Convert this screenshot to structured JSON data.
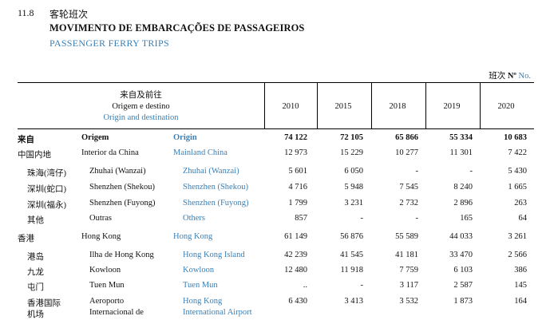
{
  "header": {
    "section_number": "11.8",
    "title_zh": "客轮班次",
    "title_pt": "MOVIMENTO DE EMBARCAÇÕES DE PASSAGEIROS",
    "title_en": "PASSENGER FERRY TRIPS"
  },
  "unit": {
    "zh": "班次",
    "pt": "Nº",
    "en": "No."
  },
  "table": {
    "col_header": {
      "zh": "来自及前往",
      "pt": "Origem e destino",
      "en": "Origin and destination"
    },
    "years": [
      "2010",
      "2015",
      "2018",
      "2019",
      "2020"
    ],
    "rows": [
      {
        "zh": "来自",
        "pt": "Origem",
        "en": "Origin",
        "values": [
          "74 122",
          "72 105",
          "65 866",
          "55 334",
          "10 683"
        ]
      },
      {
        "zh": "中国内地",
        "pt": "Interior da China",
        "en": "Mainland China",
        "values": [
          "12 973",
          "15 229",
          "10 277",
          "11 301",
          "7 422"
        ]
      },
      {
        "zh": "珠海(湾仔)",
        "pt": "Zhuhai (Wanzai)",
        "en": "Zhuhai (Wanzai)",
        "values": [
          "5 601",
          "6 050",
          "-",
          "-",
          "5 430"
        ]
      },
      {
        "zh": "深圳(蛇口)",
        "pt": "Shenzhen (Shekou)",
        "en": "Shenzhen (Shekou)",
        "values": [
          "4 716",
          "5 948",
          "7 545",
          "8 240",
          "1 665"
        ]
      },
      {
        "zh": "深圳(福永)",
        "pt": "Shenzhen (Fuyong)",
        "en": "Shenzhen (Fuyong)",
        "values": [
          "1 799",
          "3 231",
          "2 732",
          "2 896",
          "263"
        ]
      },
      {
        "zh": "其他",
        "pt": "Outras",
        "en": "Others",
        "values": [
          "857",
          "-",
          "-",
          "165",
          "64"
        ]
      },
      {
        "zh": "香港",
        "pt": "Hong Kong",
        "en": "Hong Kong",
        "values": [
          "61 149",
          "56 876",
          "55 589",
          "44 033",
          "3 261"
        ]
      },
      {
        "zh": "港岛",
        "pt": "Ilha de Hong Kong",
        "en": "Hong Kong Island",
        "values": [
          "42 239",
          "41 545",
          "41 181",
          "33 470",
          "2 566"
        ]
      },
      {
        "zh": "九龙",
        "pt": "Kowloon",
        "en": "Kowloon",
        "values": [
          "12 480",
          "11 918",
          "7 759",
          "6 103",
          "386"
        ]
      },
      {
        "zh": "屯门",
        "pt": "Tuen Mun",
        "en": "Tuen Mun",
        "values": [
          "..",
          "-",
          "3 117",
          "2 587",
          "145"
        ]
      },
      {
        "zh": "香港国际",
        "zh2": "机场",
        "pt": "Aeroporto",
        "pt2": "Internacional de",
        "en": "Hong Kong",
        "en2": "International Airport",
        "values": [
          "6 430",
          "3 413",
          "3 532",
          "1 873",
          "164"
        ]
      }
    ]
  }
}
